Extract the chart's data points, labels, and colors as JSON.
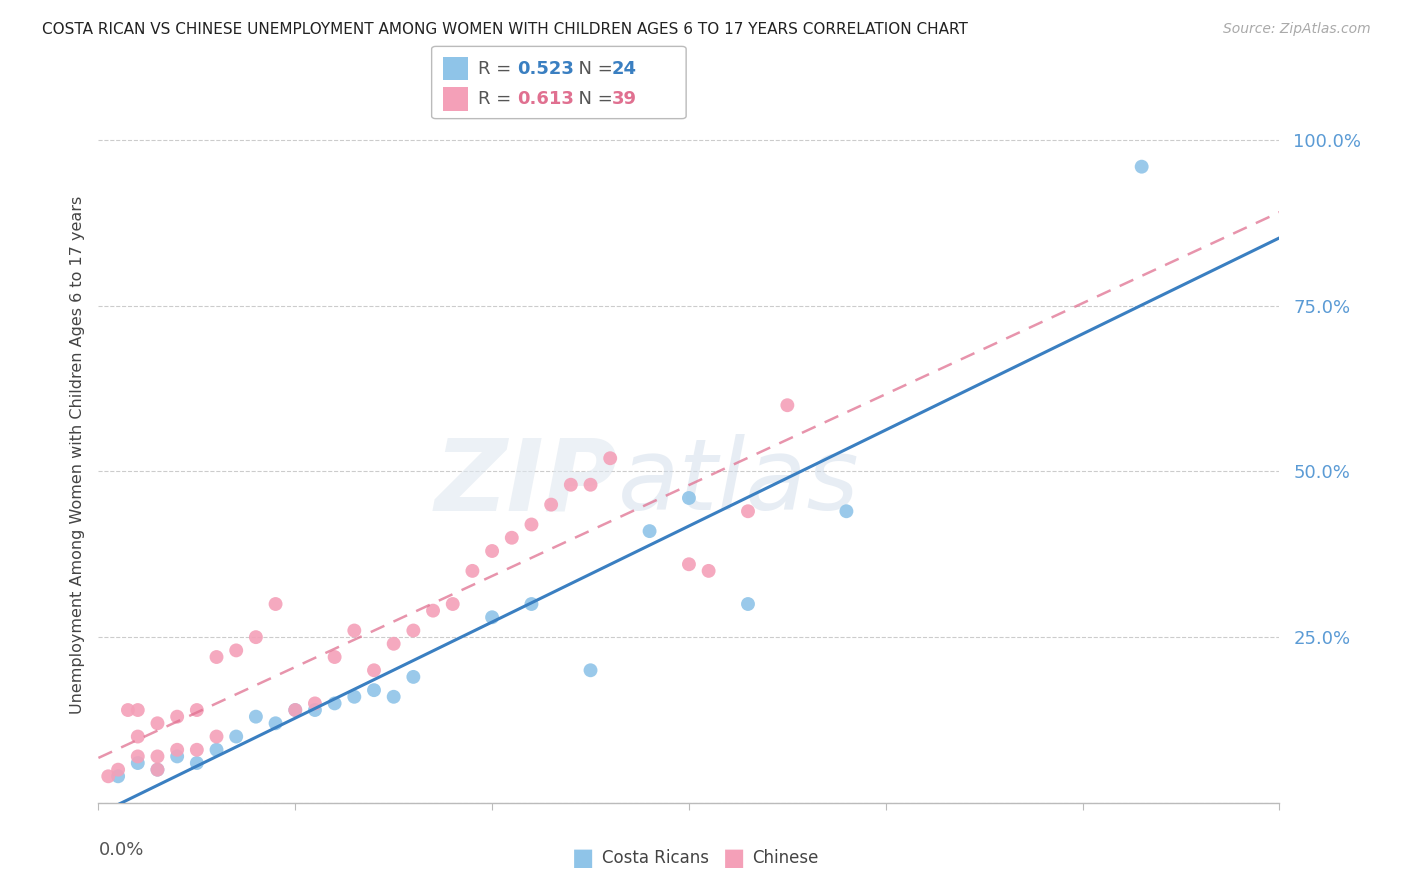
{
  "title": "COSTA RICAN VS CHINESE UNEMPLOYMENT AMONG WOMEN WITH CHILDREN AGES 6 TO 17 YEARS CORRELATION CHART",
  "source": "Source: ZipAtlas.com",
  "ylabel": "Unemployment Among Women with Children Ages 6 to 17 years",
  "cr_R": "0.523",
  "cr_N": "24",
  "ch_R": "0.613",
  "ch_N": "39",
  "cr_color": "#8fc4e8",
  "ch_color": "#f4a0b8",
  "cr_line_color": "#3a7fc1",
  "ch_line_color": "#e07090",
  "ch_line_dash": true,
  "watermark_zip": "ZIP",
  "watermark_atlas": "atlas",
  "xlim": [
    0.0,
    0.06
  ],
  "ylim": [
    0.0,
    1.05
  ],
  "yticks": [
    0.0,
    0.25,
    0.5,
    0.75,
    1.0
  ],
  "ytick_labels": [
    "",
    "25.0%",
    "50.0%",
    "75.0%",
    "100.0%"
  ],
  "xtick_positions": [
    0.0,
    0.01,
    0.02,
    0.03,
    0.04,
    0.05,
    0.06
  ],
  "costa_rican_x": [
    0.001,
    0.002,
    0.003,
    0.004,
    0.005,
    0.006,
    0.007,
    0.008,
    0.009,
    0.01,
    0.011,
    0.012,
    0.013,
    0.014,
    0.015,
    0.016,
    0.02,
    0.022,
    0.025,
    0.028,
    0.03,
    0.033,
    0.038,
    0.053
  ],
  "costa_rican_y": [
    0.04,
    0.06,
    0.05,
    0.07,
    0.06,
    0.08,
    0.1,
    0.13,
    0.12,
    0.14,
    0.14,
    0.15,
    0.16,
    0.17,
    0.16,
    0.19,
    0.28,
    0.3,
    0.2,
    0.41,
    0.46,
    0.3,
    0.44,
    0.96
  ],
  "chinese_x": [
    0.0005,
    0.001,
    0.0015,
    0.002,
    0.002,
    0.002,
    0.003,
    0.003,
    0.003,
    0.004,
    0.004,
    0.005,
    0.005,
    0.006,
    0.006,
    0.007,
    0.008,
    0.009,
    0.01,
    0.011,
    0.012,
    0.013,
    0.014,
    0.015,
    0.016,
    0.017,
    0.018,
    0.019,
    0.02,
    0.021,
    0.022,
    0.023,
    0.024,
    0.025,
    0.026,
    0.03,
    0.031,
    0.033,
    0.035
  ],
  "chinese_y": [
    0.04,
    0.05,
    0.14,
    0.1,
    0.14,
    0.07,
    0.07,
    0.12,
    0.05,
    0.13,
    0.08,
    0.08,
    0.14,
    0.1,
    0.22,
    0.23,
    0.25,
    0.3,
    0.14,
    0.15,
    0.22,
    0.26,
    0.2,
    0.24,
    0.26,
    0.29,
    0.3,
    0.35,
    0.38,
    0.4,
    0.42,
    0.45,
    0.48,
    0.48,
    0.52,
    0.36,
    0.35,
    0.44,
    0.6
  ]
}
